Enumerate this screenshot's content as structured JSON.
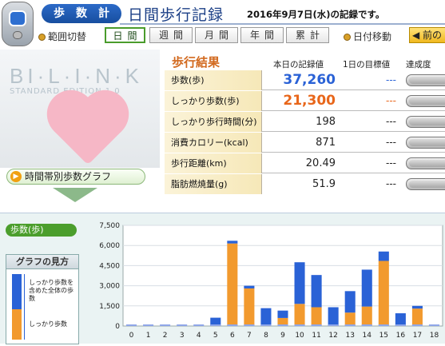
{
  "header": {
    "app_label": "歩数計",
    "page_title": "日間歩行記録",
    "date_text": "2016年9月7日(水)の記録です。"
  },
  "nav": {
    "range_label": "範囲切替",
    "buttons": [
      "日間",
      "週間",
      "月間",
      "年間",
      "累計"
    ],
    "active": "日間",
    "date_move_label": "日付移動",
    "prev_label": "前の"
  },
  "brand": {
    "name": "BI·L·I·N·K",
    "edition": "STANDARD EDITION 1.0"
  },
  "graph_link_label": "時間帯別歩数グラフ",
  "results": {
    "title": "歩行結果",
    "col_today": "本日の記録値",
    "col_goal": "1日の目標値",
    "col_rate": "達成度",
    "rows": [
      {
        "label": "歩数(歩)",
        "value": "37,260",
        "goal": "---"
      },
      {
        "label": "しっかり歩数(歩)",
        "value": "21,300",
        "goal": "---"
      },
      {
        "label": "しっかり歩行時間(分)",
        "value": "198",
        "goal": "---"
      },
      {
        "label": "消費カロリー(kcal)",
        "value": "871",
        "goal": "---"
      },
      {
        "label": "歩行距離(km)",
        "value": "20.49",
        "goal": "---"
      },
      {
        "label": "脂肪燃焼量(g)",
        "value": "51.9",
        "goal": "---"
      }
    ],
    "colors": {
      "steps": "#2a62d6",
      "firm": "#e8661a",
      "goal": "#2a62d6",
      "goal_firm": "#e8661a"
    }
  },
  "bottom": {
    "badge": "歩数(歩)",
    "howto_title": "グラフの見方",
    "howto_text1": "しっかり歩数を含めた全体の歩数",
    "howto_text2": "しっかり歩数"
  },
  "chart_data": {
    "type": "bar",
    "stacked": true,
    "categories": [
      "0",
      "1",
      "2",
      "3",
      "4",
      "5",
      "6",
      "7",
      "8",
      "9",
      "10",
      "11",
      "12",
      "13",
      "14",
      "15",
      "16",
      "17",
      "18"
    ],
    "series": [
      {
        "name": "しっかり歩数",
        "color": "#f29a2e",
        "values": [
          0,
          0,
          0,
          0,
          0,
          0,
          6150,
          2800,
          0,
          600,
          1650,
          1400,
          0,
          1000,
          1450,
          4850,
          0,
          1300,
          0
        ]
      },
      {
        "name": "",
        "color": "#2a62d6",
        "values": [
          0,
          0,
          0,
          0,
          0,
          620,
          200,
          200,
          1330,
          550,
          3100,
          2400,
          1400,
          1600,
          2750,
          700,
          950,
          200,
          100
        ]
      }
    ],
    "yticks": [
      "0",
      "1,500",
      "3,000",
      "4,500",
      "6,000",
      "7,500"
    ],
    "ylim": [
      0,
      7500
    ],
    "grid": true
  }
}
